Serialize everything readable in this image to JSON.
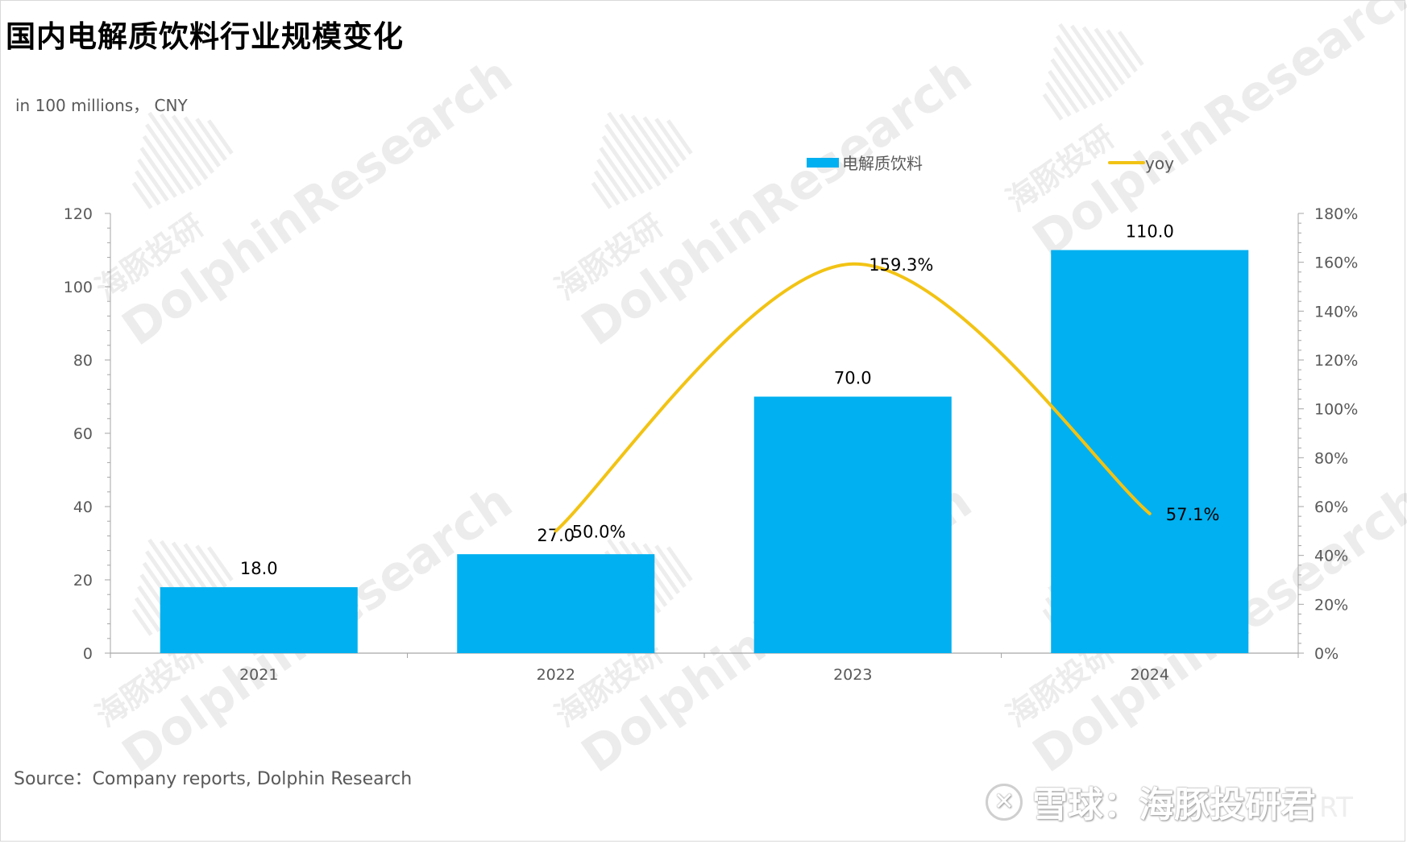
{
  "title": "国内电解质饮料行业规模变化",
  "unit_label": "in 100 millions， CNY",
  "source": "Source：Company reports, Dolphin Research",
  "watermark": {
    "brand_cn": "海豚投研",
    "brand_en": "DolphinResearch"
  },
  "footer": {
    "logo_text": "雪球：海豚投研君",
    "tail_text": "RT"
  },
  "colors": {
    "bar": "#00B0F0",
    "line": "#F2C314",
    "axis": "#a6a6a6",
    "tick_text": "#595959"
  },
  "legend": {
    "bar_label": "电解质饮料",
    "line_label": "yoy"
  },
  "chart_data": {
    "type": "bar",
    "categories": [
      "2021",
      "2022",
      "2023",
      "2024"
    ],
    "series": [
      {
        "name": "电解质饮料",
        "type": "bar",
        "axis": "left",
        "values": [
          18.0,
          27.0,
          70.0,
          110.0
        ],
        "labels": [
          "18.0",
          "27.0",
          "70.0",
          "110.0"
        ]
      },
      {
        "name": "yoy",
        "type": "line",
        "axis": "right",
        "values": [
          null,
          50.0,
          159.3,
          57.1
        ],
        "labels": [
          "",
          "50.0%",
          "159.3%",
          "57.1%"
        ]
      }
    ],
    "y_left": {
      "min": 0,
      "max": 120,
      "ticks": [
        "0",
        "20",
        "40",
        "60",
        "80",
        "100",
        "120"
      ]
    },
    "y_right": {
      "min": 0,
      "max": 180,
      "ticks": [
        "0%",
        "20%",
        "40%",
        "60%",
        "80%",
        "100%",
        "120%",
        "140%",
        "160%",
        "180%"
      ]
    },
    "legend_position": "top",
    "grid": false
  }
}
